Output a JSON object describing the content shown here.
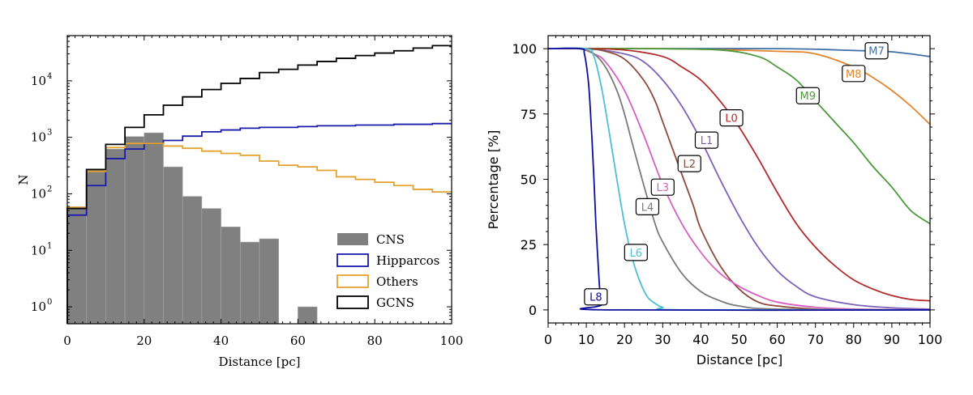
{
  "chart_data": [
    {
      "type": "histogram",
      "xlabel": "Distance [pc]",
      "ylabel": "N",
      "xlim": [
        0,
        100
      ],
      "ylim_log10": [
        -0.3,
        4.8
      ],
      "y_scale": "log",
      "x_ticks": [
        0,
        20,
        40,
        60,
        80,
        100
      ],
      "x_tick_labels": [
        "0",
        "20",
        "40",
        "60",
        "80",
        "100"
      ],
      "y_ticks_log10": [
        0,
        1,
        2,
        3,
        4
      ],
      "y_tick_base": "10",
      "y_tick_exponents": [
        "0",
        "1",
        "2",
        "3",
        "4"
      ],
      "legend_position": "lower-right",
      "bin_edges": [
        0,
        5,
        10,
        15,
        20,
        25,
        30,
        35,
        40,
        45,
        50,
        55,
        60,
        65,
        70,
        75,
        80,
        85,
        90,
        95,
        100
      ],
      "series": [
        {
          "name": "CNS",
          "style": "filled",
          "color": "#808080",
          "values": [
            55,
            270,
            620,
            1030,
            1200,
            300,
            90,
            55,
            26,
            14,
            16,
            0,
            1,
            0,
            0,
            0,
            0,
            0,
            0,
            0
          ]
        },
        {
          "name": "Hipparcos",
          "style": "step",
          "color": "#1a1aaa",
          "values": [
            42,
            140,
            420,
            620,
            780,
            880,
            1050,
            1250,
            1350,
            1450,
            1500,
            1500,
            1550,
            1600,
            1600,
            1650,
            1650,
            1700,
            1700,
            1750
          ]
        },
        {
          "name": "Others",
          "style": "step",
          "color": "#e3a230",
          "values": [
            58,
            250,
            660,
            780,
            780,
            700,
            640,
            570,
            520,
            480,
            380,
            320,
            300,
            260,
            200,
            180,
            160,
            140,
            120,
            108
          ]
        },
        {
          "name": "GCNS",
          "style": "step",
          "color": "#000000",
          "values": [
            55,
            270,
            750,
            1500,
            2500,
            3700,
            5200,
            7000,
            9000,
            11000,
            14000,
            16000,
            19000,
            22000,
            25000,
            28000,
            31000,
            34000,
            38000,
            42000
          ]
        }
      ]
    },
    {
      "type": "line",
      "xlabel": "Distance [pc]",
      "ylabel": "Percentage [%]",
      "xlim": [
        0,
        100
      ],
      "ylim": [
        -5,
        105
      ],
      "x_ticks": [
        0,
        10,
        20,
        30,
        40,
        50,
        60,
        70,
        80,
        90,
        100
      ],
      "x_tick_labels": [
        "0",
        "10",
        "20",
        "30",
        "40",
        "50",
        "60",
        "70",
        "80",
        "90",
        "100"
      ],
      "y_ticks": [
        0,
        25,
        50,
        75,
        100
      ],
      "y_tick_labels": [
        "0",
        "25",
        "50",
        "75",
        "100"
      ],
      "series": [
        {
          "name": "M7",
          "color": "#3f6fa5",
          "label_x": 86,
          "label_y": 99.2,
          "x": [
            0,
            60,
            80,
            90,
            100
          ],
          "y": [
            100,
            100,
            99.3,
            98.8,
            97
          ]
        },
        {
          "name": "M8",
          "color": "#e2852b",
          "label_x": 80,
          "label_y": 90.5,
          "x": [
            0,
            30,
            60,
            70,
            80,
            85,
            90,
            95,
            100
          ],
          "y": [
            100,
            100,
            99,
            98,
            93,
            89,
            84,
            78,
            71
          ]
        },
        {
          "name": "M9",
          "color": "#4c9a3c",
          "label_x": 68,
          "label_y": 82,
          "x": [
            0,
            25,
            45,
            55,
            60,
            65,
            70,
            75,
            80,
            85,
            90,
            95,
            100
          ],
          "y": [
            100,
            100,
            99.5,
            97,
            93,
            88,
            80,
            72,
            64,
            55,
            47,
            38,
            33
          ]
        },
        {
          "name": "L0",
          "color": "#b22a2a",
          "label_x": 48,
          "label_y": 73.5,
          "x": [
            0,
            10,
            20,
            30,
            35,
            40,
            45,
            50,
            55,
            60,
            65,
            70,
            75,
            80,
            85,
            90,
            95,
            100
          ],
          "y": [
            100,
            100,
            99.5,
            97,
            93,
            88,
            80,
            70,
            58,
            45,
            33,
            24,
            17,
            11.5,
            8,
            5.5,
            4,
            3.5
          ]
        },
        {
          "name": "L1",
          "color": "#7d63b8",
          "label_x": 41.5,
          "label_y": 65,
          "x": [
            0,
            10,
            20,
            25,
            30,
            35,
            40,
            45,
            50,
            55,
            60,
            65,
            70,
            80,
            90,
            100
          ],
          "y": [
            100,
            100,
            98,
            95,
            88,
            78,
            65,
            50,
            36,
            24,
            15,
            9,
            5,
            2,
            0.8,
            0.3
          ]
        },
        {
          "name": "L2",
          "color": "#8b4a3a",
          "label_x": 37,
          "label_y": 56,
          "x": [
            0,
            10,
            15,
            20,
            25,
            28,
            30,
            33,
            35,
            38,
            40,
            45,
            50,
            55,
            60,
            70,
            80,
            100
          ],
          "y": [
            100,
            100,
            99,
            96,
            88,
            80,
            72,
            60,
            52,
            40,
            31,
            17,
            8,
            3,
            1.5,
            0.3,
            0,
            0
          ]
        },
        {
          "name": "L3",
          "color": "#d660c2",
          "label_x": 30,
          "label_y": 47,
          "x": [
            0,
            8,
            12,
            15,
            20,
            25,
            30,
            35,
            40,
            45,
            50,
            55,
            60,
            70,
            80,
            100
          ],
          "y": [
            100,
            100,
            98,
            95,
            84,
            67,
            48,
            33,
            22,
            14,
            9,
            5.5,
            3,
            1,
            0.3,
            0
          ]
        },
        {
          "name": "L4",
          "color": "#7a7a7a",
          "label_x": 26,
          "label_y": 39.5,
          "x": [
            0,
            8,
            12,
            15,
            18,
            20,
            22,
            25,
            28,
            30,
            35,
            40,
            45,
            50,
            60,
            100
          ],
          "y": [
            100,
            100,
            98,
            93,
            84,
            75,
            64,
            48,
            33,
            26,
            14,
            7,
            3.5,
            1.5,
            0.3,
            0
          ]
        },
        {
          "name": "L6",
          "color": "#4fbfd2",
          "label_x": 23,
          "label_y": 22,
          "x": [
            0,
            10,
            12,
            14,
            16,
            18,
            20,
            22,
            24,
            26,
            28,
            30,
            35,
            100
          ],
          "y": [
            100,
            100,
            97,
            85,
            68,
            50,
            33,
            20,
            11,
            5,
            2.5,
            1,
            0,
            0
          ]
        },
        {
          "name": "L8",
          "color": "#0d0d9e",
          "label_x": 12.5,
          "label_y": 5,
          "x": [
            0,
            8.5,
            9.5,
            10.5,
            11,
            11.5,
            12,
            12.5,
            13,
            13.5,
            14,
            15,
            100
          ],
          "y": [
            100,
            100,
            98,
            88,
            78,
            65,
            50,
            33,
            20,
            8,
            2,
            0,
            0
          ]
        }
      ]
    }
  ]
}
